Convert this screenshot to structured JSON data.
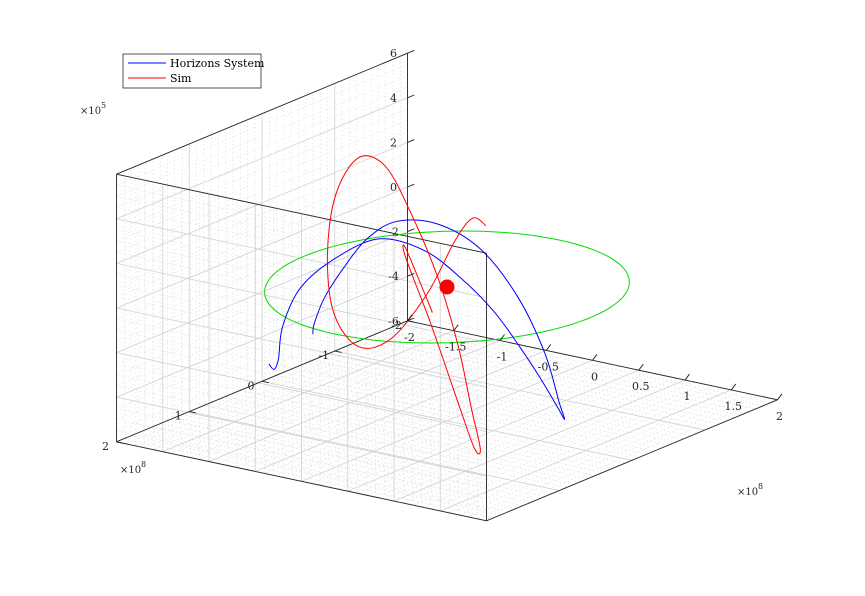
{
  "chart_data": {
    "type": "line",
    "title": "",
    "xlabel": "",
    "ylabel": "",
    "zlabel": "",
    "grid": true,
    "minor_grid": true,
    "legend_location": "top-left",
    "x_axis": {
      "ticks": [
        -2,
        -1.5,
        -1,
        -0.5,
        0,
        0.5,
        1,
        1.5,
        2
      ],
      "tick_labels": [
        "-2",
        "-1.5",
        "-1",
        "-0.5",
        "0",
        "0.5",
        "1",
        "1.5",
        "2"
      ],
      "exponent": "×10",
      "exponent_power": "8",
      "lim": [
        -2,
        2
      ]
    },
    "y_axis": {
      "ticks": [
        -2,
        -1,
        0,
        1,
        2
      ],
      "tick_labels": [
        "-2",
        "-1",
        "0",
        "1",
        "2"
      ],
      "exponent": "×10",
      "exponent_power": "8",
      "lim": [
        -2,
        2
      ]
    },
    "z_axis": {
      "ticks": [
        -6,
        -4,
        -2,
        0,
        2,
        4,
        6
      ],
      "tick_labels": [
        "-6",
        "-4",
        "-2",
        "0",
        "2",
        "4",
        "6"
      ],
      "exponent": "×10",
      "exponent_power": "5",
      "lim": [
        -6,
        6
      ]
    },
    "series": [
      {
        "name": "Horizons System",
        "color": "#0000ff",
        "description": "3D trajectory of the orbiting body",
        "points_xyz": [
          [
            -1.1,
            1.05,
            -3.0
          ],
          [
            -1.2,
            0.85,
            -3.6
          ],
          [
            -1.35,
            0.6,
            -3.6
          ],
          [
            -1.5,
            0.35,
            -2.6
          ],
          [
            -1.5,
            0.1,
            -1.2
          ],
          [
            -1.3,
            -0.15,
            0.0
          ],
          [
            -1.0,
            -0.35,
            0.8
          ],
          [
            -0.6,
            -0.45,
            0.5
          ],
          [
            -0.2,
            -0.45,
            -0.4
          ],
          [
            0.2,
            -0.4,
            -1.5
          ],
          [
            0.55,
            -0.3,
            -2.6
          ],
          [
            0.85,
            -0.2,
            -3.6
          ],
          [
            1.15,
            -0.05,
            -4.4
          ],
          [
            1.35,
            0.1,
            -4.6
          ],
          [
            1.45,
            0.3,
            -3.5
          ],
          [
            1.45,
            0.5,
            -1.0
          ],
          [
            1.35,
            0.75,
            1.8
          ],
          [
            1.1,
            0.95,
            4.0
          ],
          [
            0.75,
            1.1,
            5.0
          ],
          [
            0.35,
            1.15,
            4.8
          ],
          [
            -0.05,
            1.05,
            3.5
          ],
          [
            -0.45,
            0.85,
            1.6
          ],
          [
            -0.85,
            0.6,
            -0.4
          ],
          [
            -1.2,
            0.3,
            -2.3
          ],
          [
            -1.45,
            0.0,
            -3.4
          ]
        ]
      },
      {
        "name": "Sim",
        "color": "#ff0000",
        "description": "Simulated trajectory",
        "points_xyz": [
          [
            1.1,
            1.6,
            2.0
          ],
          [
            1.05,
            1.7,
            3.4
          ],
          [
            1.0,
            1.85,
            5.2
          ],
          [
            1.05,
            1.9,
            4.8
          ],
          [
            1.2,
            1.75,
            1.8
          ],
          [
            1.3,
            1.5,
            -2.0
          ],
          [
            1.2,
            1.15,
            -4.6
          ],
          [
            0.95,
            0.75,
            -5.4
          ],
          [
            0.5,
            0.3,
            -4.6
          ],
          [
            0.0,
            -0.15,
            -2.8
          ],
          [
            -0.5,
            -0.5,
            -0.6
          ],
          [
            -0.95,
            -0.7,
            1.6
          ],
          [
            -1.3,
            -0.8,
            3.2
          ],
          [
            -1.55,
            -0.75,
            3.4
          ],
          [
            -1.6,
            -0.5,
            2.0
          ],
          [
            -1.45,
            -0.2,
            -0.2
          ],
          [
            -1.1,
            0.15,
            -2.0
          ],
          [
            -0.6,
            0.45,
            -2.6
          ],
          [
            -0.05,
            0.7,
            -1.4
          ],
          [
            0.5,
            0.9,
            1.4
          ],
          [
            0.95,
            1.1,
            4.4
          ],
          [
            1.3,
            1.3,
            6.0
          ],
          [
            1.6,
            1.5,
            6.2
          ]
        ]
      },
      {
        "name": "",
        "color": "#00dd00",
        "description": "Reference circular orbit in the z=0 plane",
        "radius": 1.55,
        "center": [
          0,
          0,
          0
        ]
      }
    ],
    "central_body": {
      "color": "#ff0000",
      "position": [
        0,
        0,
        0
      ]
    }
  }
}
